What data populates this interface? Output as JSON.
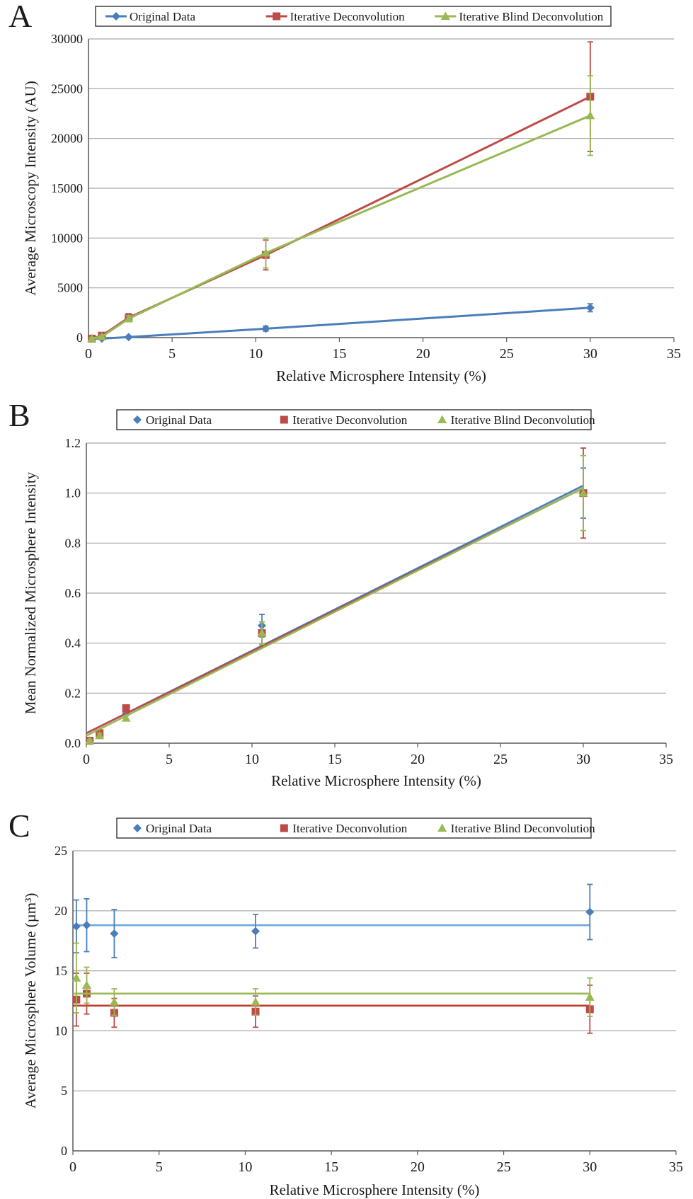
{
  "colors": {
    "original": "#4a7ebb",
    "original_fit_C": "#6fa8dc",
    "iterative": "#be4b48",
    "iterative_fit_C": "#c0392b",
    "blind": "#98b954",
    "grid": "#a6a6a6",
    "axis": "#595959"
  },
  "chart_data": [
    {
      "id": "A",
      "panel_letter": "A",
      "type": "line",
      "xlabel": "Relative Microsphere Intensity (%)",
      "ylabel": "Average Microscopy Intensity (AU)",
      "xlim": [
        0,
        35
      ],
      "ylim": [
        0,
        30000
      ],
      "xticks": [
        0,
        5,
        10,
        15,
        20,
        25,
        30,
        35
      ],
      "yticks": [
        0,
        5000,
        10000,
        15000,
        20000,
        25000,
        30000
      ],
      "ytick_labels": [
        "0",
        "5000",
        "10000",
        "15000",
        "20000",
        "25000",
        "30000"
      ],
      "grid": true,
      "legend_position": "top",
      "legend_style": "line",
      "series": [
        {
          "name": "Original Data",
          "color_key": "original",
          "marker": "diamond",
          "connect": true,
          "x": [
            0.2,
            0.8,
            2.4,
            10.6,
            30
          ],
          "y": [
            -100,
            -100,
            50,
            900,
            3000
          ],
          "err": [
            50,
            50,
            80,
            250,
            400
          ]
        },
        {
          "name": "Iterative Deconvolution",
          "color_key": "iterative",
          "marker": "square",
          "connect": true,
          "x": [
            0.2,
            0.8,
            2.4,
            10.6,
            30
          ],
          "y": [
            -100,
            200,
            2000,
            8300,
            24200
          ],
          "err": [
            100,
            200,
            400,
            1500,
            5500
          ]
        },
        {
          "name": "Iterative Blind Deconvolution",
          "color_key": "blind",
          "marker": "triangle",
          "connect": true,
          "x": [
            0.2,
            0.8,
            2.4,
            10.6,
            30
          ],
          "y": [
            -100,
            100,
            1900,
            8500,
            22300
          ],
          "err": [
            100,
            150,
            300,
            1500,
            4000
          ]
        }
      ]
    },
    {
      "id": "B",
      "panel_letter": "B",
      "type": "scatter",
      "xlabel": "Relative Microsphere Intensity (%)",
      "ylabel": "Mean Normalized Microsphere Intensity",
      "xlim": [
        0,
        35
      ],
      "ylim": [
        0,
        1.2
      ],
      "xticks": [
        0,
        5,
        10,
        15,
        20,
        25,
        30,
        35
      ],
      "yticks": [
        0,
        0.2,
        0.4,
        0.6,
        0.8,
        1.0,
        1.2
      ],
      "ytick_labels": [
        "0.0",
        "0.2",
        "0.4",
        "0.6",
        "0.8",
        "1.0",
        "1.2"
      ],
      "grid": true,
      "legend_position": "top",
      "legend_style": "marker",
      "series": [
        {
          "name": "Original Data",
          "color_key": "original",
          "marker": "diamond",
          "x": [
            0.2,
            0.8,
            2.4,
            10.6,
            30
          ],
          "y": [
            0.01,
            0.04,
            0.12,
            0.47,
            1.0
          ],
          "err": [
            0.005,
            0.01,
            0.01,
            0.045,
            0.1
          ],
          "trend": [
            [
              0,
              0.04
            ],
            [
              30,
              1.03
            ]
          ]
        },
        {
          "name": "Iterative Deconvolution",
          "color_key": "iterative",
          "marker": "square",
          "x": [
            0.2,
            0.8,
            2.4,
            10.6,
            30
          ],
          "y": [
            0.01,
            0.04,
            0.14,
            0.44,
            1.0
          ],
          "err": [
            0.005,
            0.01,
            0.01,
            0.045,
            0.18
          ],
          "trend": [
            [
              0,
              0.04
            ],
            [
              30,
              1.02
            ]
          ]
        },
        {
          "name": "Iterative Blind Deconvolution",
          "color_key": "blind",
          "marker": "triangle",
          "x": [
            0.2,
            0.8,
            2.4,
            10.6,
            30
          ],
          "y": [
            0.01,
            0.03,
            0.1,
            0.44,
            1.0
          ],
          "err": [
            0.005,
            0.01,
            0.01,
            0.045,
            0.15
          ],
          "trend": [
            [
              0,
              0.03
            ],
            [
              30,
              1.02
            ]
          ]
        }
      ]
    },
    {
      "id": "C",
      "panel_letter": "C",
      "type": "scatter",
      "xlabel": "Relative Microsphere Intensity (%)",
      "ylabel": "Average Microsphere Volume (µm³)",
      "xlim": [
        0,
        35
      ],
      "ylim": [
        0,
        25
      ],
      "xticks": [
        0,
        5,
        10,
        15,
        20,
        25,
        30,
        35
      ],
      "yticks": [
        0,
        5,
        10,
        15,
        20,
        25
      ],
      "ytick_labels": [
        "0",
        "5",
        "10",
        "15",
        "20",
        "25"
      ],
      "grid": true,
      "legend_position": "top",
      "legend_style": "marker",
      "series": [
        {
          "name": "Original Data",
          "color_key": "original",
          "fit_color_key": "original_fit_C",
          "marker": "diamond",
          "x": [
            0.2,
            0.8,
            2.4,
            10.6,
            30
          ],
          "y": [
            18.7,
            18.8,
            18.1,
            18.3,
            19.9
          ],
          "err": [
            2.2,
            2.2,
            2.0,
            1.4,
            2.3
          ],
          "trend": [
            [
              0,
              18.8
            ],
            [
              30,
              18.8
            ]
          ]
        },
        {
          "name": "Iterative Deconvolution",
          "color_key": "iterative",
          "fit_color_key": "iterative_fit_C",
          "marker": "square",
          "x": [
            0.2,
            0.8,
            2.4,
            10.6,
            30
          ],
          "y": [
            12.6,
            13.1,
            11.5,
            11.6,
            11.8
          ],
          "err": [
            2.2,
            1.7,
            1.2,
            1.3,
            2.0
          ],
          "trend": [
            [
              0,
              12.1
            ],
            [
              30,
              12.1
            ]
          ]
        },
        {
          "name": "Iterative Blind Deconvolution",
          "color_key": "blind",
          "fit_color_key": "blind",
          "marker": "triangle",
          "x": [
            0.2,
            0.8,
            2.4,
            10.6,
            30
          ],
          "y": [
            14.4,
            13.8,
            12.4,
            12.4,
            12.8
          ],
          "err": [
            2.9,
            1.5,
            1.1,
            1.1,
            1.6
          ],
          "trend": [
            [
              0,
              13.1
            ],
            [
              30,
              13.1
            ]
          ]
        }
      ]
    }
  ]
}
